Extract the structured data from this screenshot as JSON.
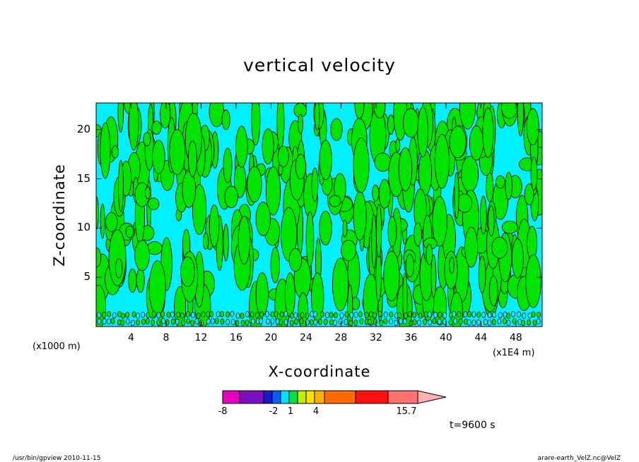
{
  "chart_data": {
    "type": "heatmap",
    "title": "vertical velocity",
    "xlabel": "X-coordinate",
    "ylabel": "Z-coordinate",
    "x_unit_left": "(x1000 m)",
    "x_unit_right": "(x1E4 m)",
    "xlim": [
      0,
      51
    ],
    "ylim": [
      0,
      22.7
    ],
    "x_ticks": [
      "4",
      "8",
      "12",
      "16",
      "20",
      "24",
      "28",
      "32",
      "36",
      "40",
      "44",
      "48"
    ],
    "x_tick_values": [
      4,
      8,
      12,
      16,
      20,
      24,
      28,
      32,
      36,
      40,
      44,
      48
    ],
    "y_ticks": [
      "5",
      "10",
      "15",
      "20"
    ],
    "y_tick_values": [
      5,
      10,
      15,
      20
    ],
    "fill_colors": {
      "negative": "#00f0ff",
      "positive": "#00e400",
      "contour": "#000000"
    },
    "colorbar": {
      "colors": [
        "#e800c0",
        "#7a10c0",
        "#1a18c8",
        "#0060ff",
        "#00e0ff",
        "#00e040",
        "#c0f000",
        "#ffe000",
        "#ffb000",
        "#ff6a00",
        "#ff1010",
        "#ff7070",
        "#ffb0b0"
      ],
      "tick_labels": [
        "-8",
        "-2",
        "1",
        "4",
        "15.7"
      ],
      "max": 15.7
    },
    "time_label": "t=9600 s"
  },
  "footer": {
    "left": "/usr/bin/gpview   2010-11-15",
    "right": "arare-earth_VelZ.nc@VelZ"
  }
}
